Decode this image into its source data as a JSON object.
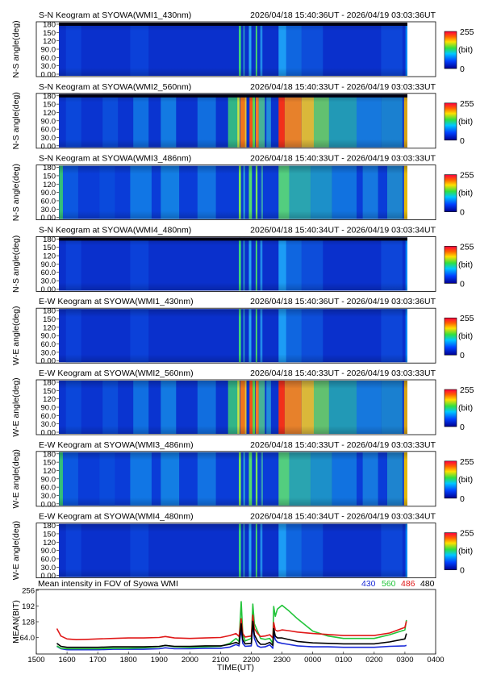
{
  "keogram_panels": [
    {
      "title": "S-N Keogram at SYOWA(WMI1_430nm)",
      "time_range": "2026/04/18 15:40:36UT - 2026/04/19 03:03:36UT",
      "ylabel": "N-S angle(deg)",
      "palette": "dim"
    },
    {
      "title": "S-N Keogram at SYOWA(WMI2_560nm)",
      "time_range": "2026/04/18 15:40:33UT - 2026/04/19 03:03:33UT",
      "ylabel": "N-S angle(deg)",
      "palette": "bright"
    },
    {
      "title": "S-N Keogram at SYOWA(WMI3_486nm)",
      "time_range": "2026/04/18 15:40:33UT - 2026/04/19 03:03:33UT",
      "ylabel": "N-S angle(deg)",
      "palette": "medium"
    },
    {
      "title": "S-N Keogram at SYOWA(WMI4_480nm)",
      "time_range": "2026/04/18 15:40:34UT - 2026/04/19 03:03:34UT",
      "ylabel": "N-S angle(deg)",
      "palette": "dim"
    },
    {
      "title": "E-W Keogram at SYOWA(WMI1_430nm)",
      "time_range": "2026/04/18 15:40:36UT - 2026/04/19 03:03:36UT",
      "ylabel": "W-E angle(deg)",
      "palette": "dim"
    },
    {
      "title": "E-W Keogram at SYOWA(WMI2_560nm)",
      "time_range": "2026/04/18 15:40:33UT - 2026/04/19 03:03:33UT",
      "ylabel": "W-E angle(deg)",
      "palette": "bright"
    },
    {
      "title": "E-W Keogram at SYOWA(WMI3_486nm)",
      "time_range": "2026/04/18 15:40:33UT - 2026/04/19 03:03:33UT",
      "ylabel": "W-E angle(deg)",
      "palette": "medium"
    },
    {
      "title": "E-W Keogram at SYOWA(WMI4_480nm)",
      "time_range": "2026/04/18 15:40:34UT - 2026/04/19 03:03:34UT",
      "ylabel": "W-E angle(deg)",
      "palette": "dim"
    }
  ],
  "keogram_ticks": [
    "0.00",
    "30.0",
    "60.0",
    "90.0",
    "120",
    "150",
    "180"
  ],
  "colorbar": {
    "max_label": "255",
    "unit_label": "(bit)",
    "min_label": "0"
  },
  "mean_panel": {
    "title": "Mean intensity in FOV of Syowa WMI",
    "ylabel": "MEAN(BIT)",
    "xlabel": "TIME(UT)",
    "ytick_labels": [
      "64.0",
      "128",
      "192",
      "256"
    ],
    "legend": [
      {
        "label": "430",
        "color": "#1a2ad8"
      },
      {
        "label": "560",
        "color": "#22c43a"
      },
      {
        "label": "486",
        "color": "#e01818"
      },
      {
        "label": "480",
        "color": "#000000"
      }
    ]
  },
  "chart_data": {
    "type": "line",
    "title": "Mean intensity in FOV of Syowa WMI",
    "xlabel": "TIME(UT)",
    "ylabel": "MEAN(BIT)",
    "x_tick_labels": [
      "1500",
      "1600",
      "1700",
      "1800",
      "1900",
      "2000",
      "2100",
      "2200",
      "2300",
      "0000",
      "0100",
      "0200",
      "0300",
      "0400"
    ],
    "xlim": [
      15.0,
      28.0
    ],
    "ylim": [
      0,
      256
    ],
    "y_ticks": [
      64,
      128,
      192,
      256
    ],
    "x": [
      15.67,
      15.8,
      16.0,
      16.3,
      16.6,
      17.0,
      17.5,
      18.0,
      18.5,
      19.0,
      19.2,
      19.5,
      20.0,
      20.5,
      21.0,
      21.3,
      21.5,
      21.6,
      21.67,
      21.72,
      21.8,
      22.0,
      22.05,
      22.1,
      22.2,
      22.3,
      22.45,
      22.6,
      22.7,
      22.73,
      22.78,
      22.85,
      23.0,
      23.2,
      23.5,
      24.0,
      24.5,
      25.0,
      25.5,
      26.0,
      26.5,
      27.0,
      27.05
    ],
    "series": [
      {
        "name": "430",
        "color": "#1a2ad8",
        "values": [
          28,
          18,
          14,
          14,
          14,
          14,
          16,
          16,
          16,
          18,
          22,
          18,
          18,
          20,
          20,
          25,
          35,
          30,
          100,
          40,
          28,
          30,
          120,
          60,
          30,
          24,
          26,
          34,
          20,
          80,
          55,
          45,
          40,
          36,
          30,
          26,
          26,
          24,
          24,
          24,
          28,
          30,
          32
        ]
      },
      {
        "name": "560",
        "color": "#22c43a",
        "values": [
          30,
          20,
          18,
          18,
          18,
          18,
          20,
          20,
          22,
          26,
          32,
          26,
          24,
          26,
          28,
          40,
          60,
          48,
          210,
          80,
          50,
          60,
          200,
          120,
          90,
          60,
          56,
          60,
          40,
          190,
          150,
          180,
          195,
          175,
          140,
          90,
          70,
          60,
          60,
          60,
          75,
          95,
          135
        ]
      },
      {
        "name": "486",
        "color": "#e01818",
        "values": [
          100,
          70,
          58,
          55,
          56,
          58,
          60,
          62,
          62,
          64,
          68,
          62,
          60,
          62,
          64,
          72,
          80,
          68,
          140,
          80,
          66,
          70,
          155,
          100,
          80,
          68,
          70,
          75,
          62,
          125,
          95,
          90,
          95,
          92,
          86,
          80,
          76,
          72,
          72,
          72,
          82,
          105,
          130
        ]
      },
      {
        "name": "480",
        "color": "#000000",
        "values": [
          40,
          28,
          24,
          24,
          24,
          24,
          26,
          26,
          26,
          28,
          32,
          28,
          28,
          30,
          30,
          36,
          44,
          38,
          120,
          55,
          38,
          40,
          130,
          75,
          50,
          36,
          36,
          44,
          32,
          100,
          70,
          62,
          62,
          56,
          48,
          42,
          40,
          38,
          38,
          38,
          46,
          58,
          80
        ]
      }
    ]
  }
}
